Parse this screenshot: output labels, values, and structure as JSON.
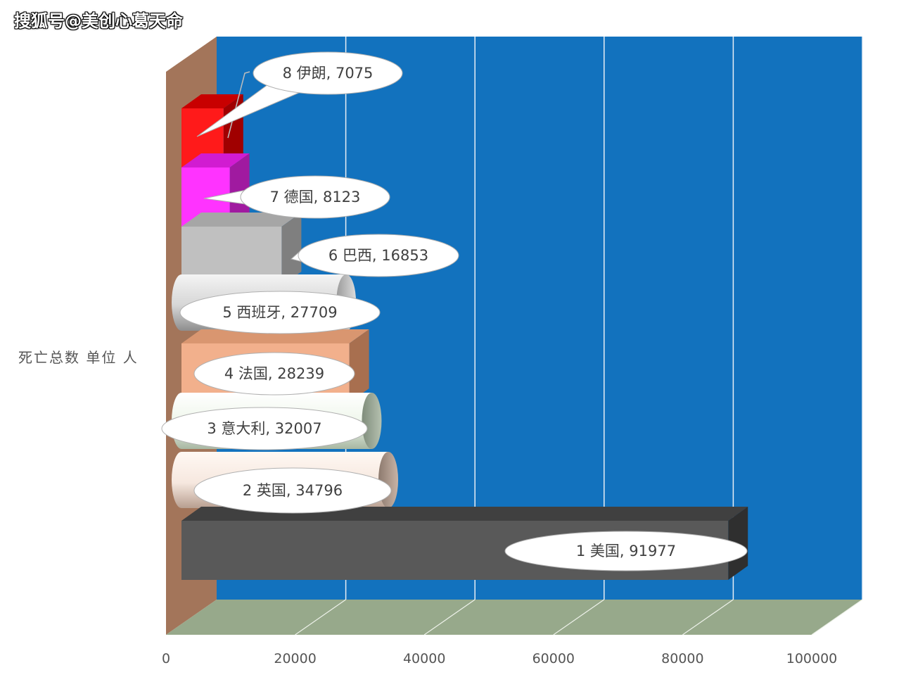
{
  "watermark": "搜狐号@美创心葛天命",
  "chart_data": {
    "type": "bar",
    "orientation": "horizontal",
    "ylabel": "死亡总数 单位 人",
    "xlim": [
      0,
      100000
    ],
    "xticks": [
      "0",
      "20000",
      "40000",
      "60000",
      "80000",
      "100000"
    ],
    "grid": true,
    "categories": [
      "1 美国",
      "2 英国",
      "3 意大利",
      "4 法国",
      "5 西班牙",
      "6 巴西",
      "7 德国",
      "8 伊朗"
    ],
    "values": [
      91977,
      34796,
      32007,
      28239,
      27709,
      16853,
      8123,
      7075
    ],
    "data_labels": [
      "1 美国, 91977",
      "2 英国, 34796",
      "3 意大利, 32007",
      "4 法国, 28239",
      "5 西班牙, 27709",
      "6 巴西, 16853",
      "7 德国, 8123",
      "8 伊朗, 7075"
    ],
    "series_colors": [
      "#595959",
      "#f6ece6",
      "#eef5ea",
      "#f2b08c",
      "#d0d0d0",
      "#c0c0c0",
      "#ff33ff",
      "#ff1a1a"
    ],
    "colors": {
      "back_wall": "#1272be",
      "side_wall": "#a3755a",
      "floor": "#97a98b"
    }
  }
}
